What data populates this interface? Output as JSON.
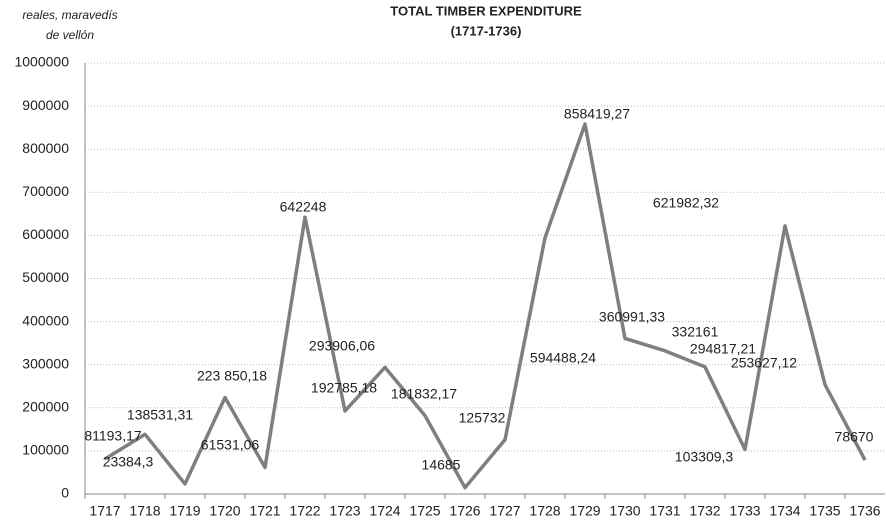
{
  "chart_data": {
    "type": "line",
    "title": "TOTAL  TIMBER EXPENDITURE",
    "subtitle": "(1717-1736)",
    "y_label": [
      "reales, maravedís",
      "de vellón"
    ],
    "categories": [
      "1717",
      "1718",
      "1719",
      "1720",
      "1721",
      "1722",
      "1723",
      "1724",
      "1725",
      "1726",
      "1727",
      "1728",
      "1729",
      "1730",
      "1731",
      "1732",
      "1733",
      "1734",
      "1735",
      "1736"
    ],
    "series": [
      {
        "name": "Total timber expenditure",
        "color": "#7f7f7f",
        "values": [
          81193.17,
          138531.31,
          23384.3,
          223850.18,
          61531.06,
          642248,
          192785.18,
          293906.06,
          181832.17,
          14685,
          125732,
          594488.24,
          858419.27,
          360991.33,
          332161,
          294817.21,
          103309.3,
          621982.32,
          253627.12,
          78670
        ],
        "value_labels": [
          "81193,17",
          "138531,31",
          "23384,3",
          "223 850,18",
          "61531,06",
          "642248",
          "192785,18",
          "293906,06",
          "181832,17",
          "14685",
          "125732",
          "594488,24",
          "858419,27",
          "360991,33",
          "332161",
          "294817,21",
          "103309,3",
          "621982,32",
          "253627,12",
          "78670"
        ]
      }
    ],
    "ylim": [
      0,
      1000000
    ],
    "yticks": [
      0,
      100000,
      200000,
      300000,
      400000,
      500000,
      600000,
      700000,
      800000,
      900000,
      1000000
    ],
    "grid": true
  }
}
